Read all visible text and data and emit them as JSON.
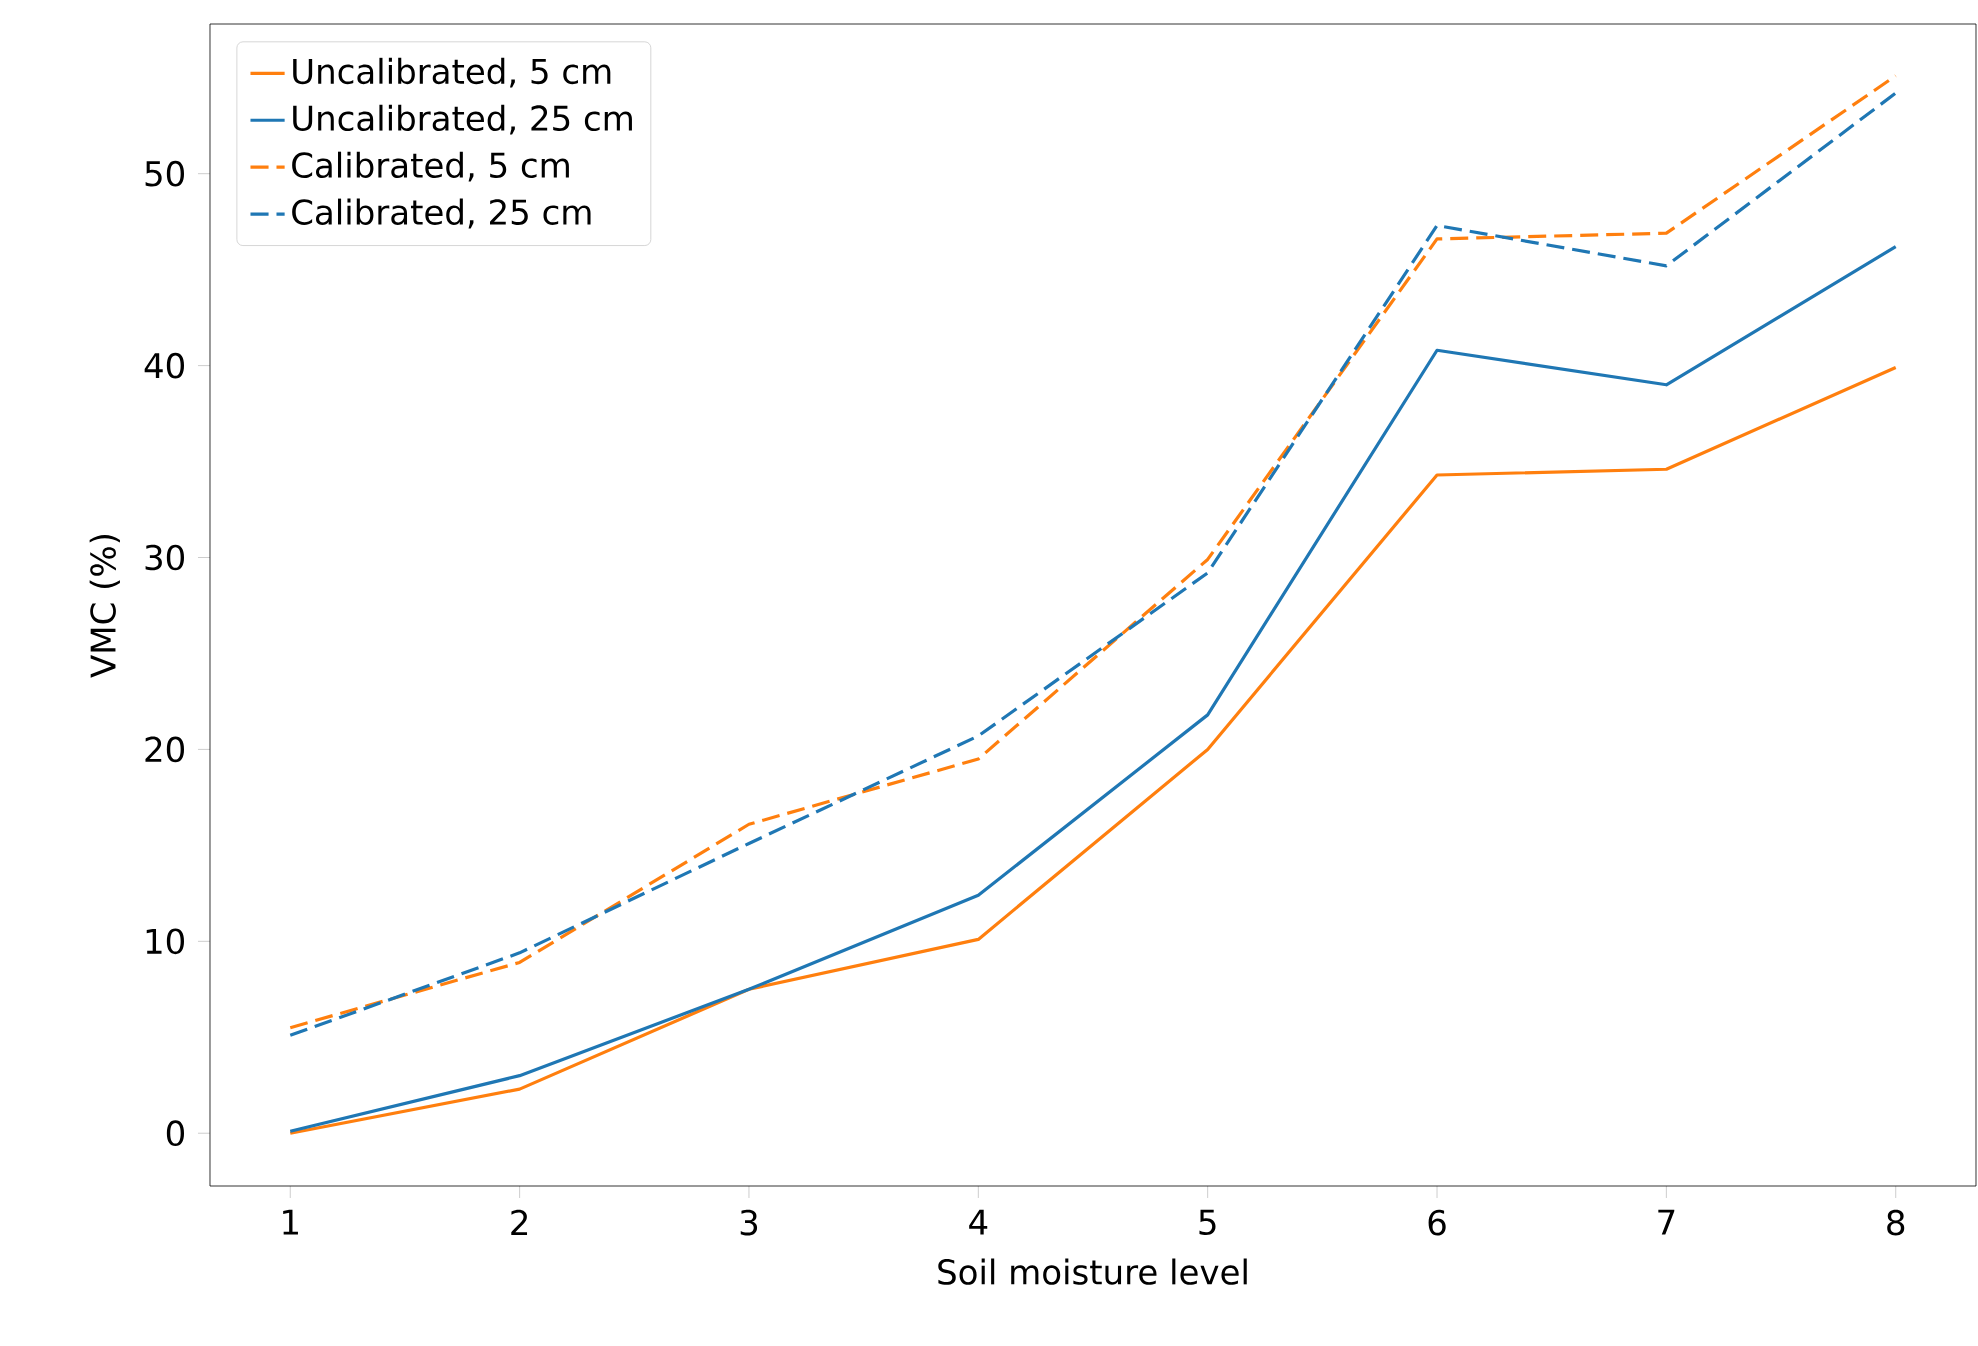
{
  "chart_data": {
    "type": "line",
    "xlabel": "Soil moisture level",
    "ylabel": "VMC (%)",
    "x": [
      1,
      2,
      3,
      4,
      5,
      6,
      7,
      8
    ],
    "series": [
      {
        "name": "Uncalibrated, 5 cm",
        "color": "#ff7f0e",
        "line_style": "solid",
        "values": [
          0.0,
          2.3,
          7.5,
          10.1,
          20.0,
          34.3,
          34.6,
          39.9
        ]
      },
      {
        "name": "Uncalibrated, 25 cm",
        "color": "#1f77b4",
        "line_style": "solid",
        "values": [
          0.1,
          3.0,
          7.5,
          12.4,
          21.8,
          40.8,
          39.0,
          46.2
        ]
      },
      {
        "name": "Calibrated, 5 cm",
        "color": "#ff7f0e",
        "line_style": "dashed",
        "values": [
          5.5,
          8.9,
          16.1,
          19.5,
          29.9,
          46.6,
          46.9,
          55.1
        ]
      },
      {
        "name": "Calibrated, 25 cm",
        "color": "#1f77b4",
        "line_style": "dashed",
        "values": [
          5.1,
          9.4,
          15.1,
          20.7,
          29.2,
          47.3,
          45.2,
          54.2
        ]
      }
    ],
    "xlim": [
      0.65,
      8.35
    ],
    "ylim": [
      -2.75,
      57.8
    ],
    "xticks": [
      1,
      2,
      3,
      4,
      5,
      6,
      7,
      8
    ],
    "yticks": [
      0,
      10,
      20,
      30,
      40,
      50
    ],
    "legend": "top left",
    "grid": false,
    "marker": "none"
  }
}
